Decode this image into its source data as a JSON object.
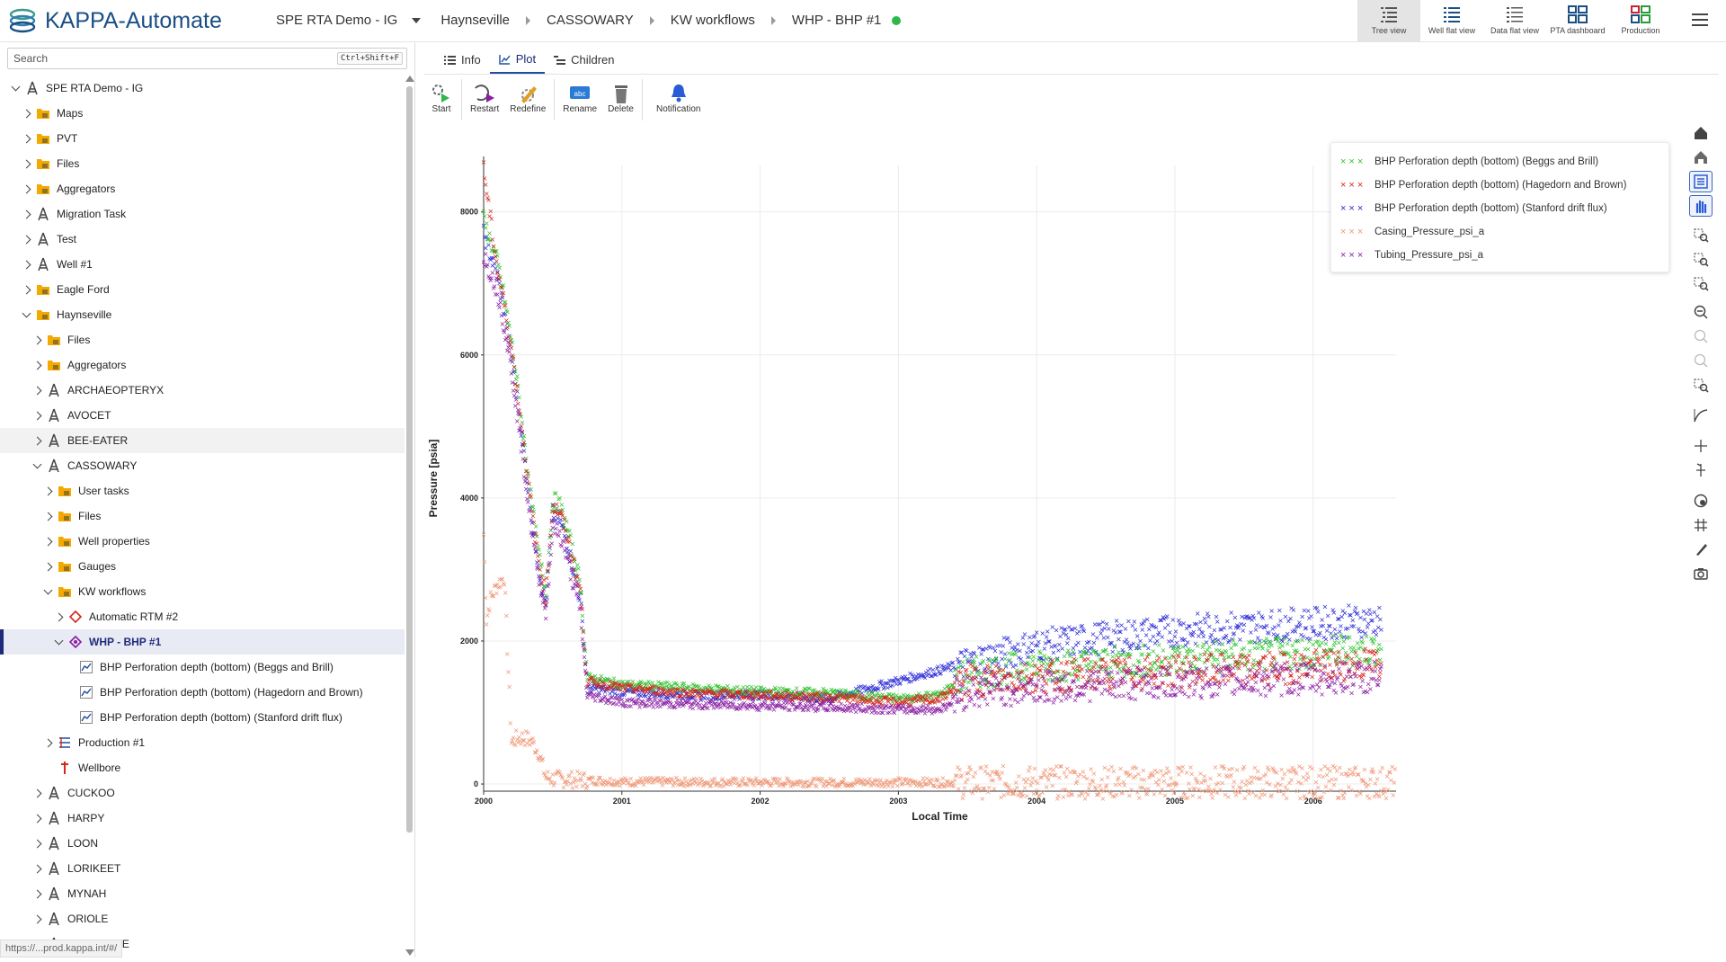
{
  "app": {
    "title": "KAPPA-Automate"
  },
  "breadcrumb": {
    "project": "SPE RTA Demo - IG",
    "items": [
      "Haynseville",
      "CASSOWARY",
      "KW workflows",
      "WHP - BHP #1"
    ]
  },
  "views": [
    {
      "label": "Tree view",
      "icon": "tree-view-icon"
    },
    {
      "label": "Well flat view",
      "icon": "well-flat-view-icon"
    },
    {
      "label": "Data flat view",
      "icon": "data-flat-view-icon"
    },
    {
      "label": "PTA dashboard",
      "icon": "pta-dashboard-icon"
    },
    {
      "label": "Production",
      "icon": "production-icon"
    }
  ],
  "search": {
    "placeholder": "Search",
    "shortcut": "Ctrl+Shift+F"
  },
  "tree": [
    {
      "label": "SPE RTA Demo - IG",
      "depth": 0,
      "chevron": "down",
      "icon": "well-icon"
    },
    {
      "label": "Maps",
      "depth": 1,
      "chevron": "right",
      "icon": "maps-folder-icon"
    },
    {
      "label": "PVT",
      "depth": 1,
      "chevron": "right",
      "icon": "pvt-folder-icon"
    },
    {
      "label": "Files",
      "depth": 1,
      "chevron": "right",
      "icon": "folder-icon"
    },
    {
      "label": "Aggregators",
      "depth": 1,
      "chevron": "right",
      "icon": "aggregators-folder-icon"
    },
    {
      "label": "Migration Task",
      "depth": 1,
      "chevron": "right",
      "icon": "well-icon"
    },
    {
      "label": "Test",
      "depth": 1,
      "chevron": "right",
      "icon": "well-icon"
    },
    {
      "label": "Well #1",
      "depth": 1,
      "chevron": "right",
      "icon": "well-icon"
    },
    {
      "label": "Eagle Ford",
      "depth": 1,
      "chevron": "right",
      "icon": "field-folder-icon"
    },
    {
      "label": "Haynseville",
      "depth": 1,
      "chevron": "down",
      "icon": "field-folder-icon"
    },
    {
      "label": "Files",
      "depth": 2,
      "chevron": "right",
      "icon": "folder-icon"
    },
    {
      "label": "Aggregators",
      "depth": 2,
      "chevron": "right",
      "icon": "aggregators-folder-icon"
    },
    {
      "label": "ARCHAEOPTERYX",
      "depth": 2,
      "chevron": "right",
      "icon": "well-icon"
    },
    {
      "label": "AVOCET",
      "depth": 2,
      "chevron": "right",
      "icon": "well-icon"
    },
    {
      "label": "BEE-EATER",
      "depth": 2,
      "chevron": "right",
      "icon": "well-icon",
      "hover": true
    },
    {
      "label": "CASSOWARY",
      "depth": 2,
      "chevron": "down",
      "icon": "well-icon"
    },
    {
      "label": "User tasks",
      "depth": 3,
      "chevron": "right",
      "icon": "user-tasks-folder-icon"
    },
    {
      "label": "Files",
      "depth": 3,
      "chevron": "right",
      "icon": "folder-icon"
    },
    {
      "label": "Well properties",
      "depth": 3,
      "chevron": "right",
      "icon": "well-properties-folder-icon"
    },
    {
      "label": "Gauges",
      "depth": 3,
      "chevron": "right",
      "icon": "gauges-folder-icon"
    },
    {
      "label": "KW workflows",
      "depth": 3,
      "chevron": "down",
      "icon": "workflows-folder-icon"
    },
    {
      "label": "Automatic RTM #2",
      "depth": 4,
      "chevron": "right",
      "icon": "rtm-icon"
    },
    {
      "label": "WHP - BHP #1",
      "depth": 4,
      "chevron": "down",
      "icon": "workflow-icon",
      "selected": true
    },
    {
      "label": "BHP Perforation depth (bottom) (Beggs and Brill)",
      "depth": 5,
      "chevron": "none",
      "icon": "data-series-icon"
    },
    {
      "label": "BHP Perforation depth (bottom) (Hagedorn and Brown)",
      "depth": 5,
      "chevron": "none",
      "icon": "data-series-icon"
    },
    {
      "label": "BHP Perforation depth (bottom) (Stanford drift flux)",
      "depth": 5,
      "chevron": "none",
      "icon": "data-series-icon"
    },
    {
      "label": "Production #1",
      "depth": 3,
      "chevron": "right",
      "icon": "production-icon"
    },
    {
      "label": "Wellbore",
      "depth": 3,
      "chevron": "none",
      "icon": "wellbore-icon"
    },
    {
      "label": "CUCKOO",
      "depth": 2,
      "chevron": "right",
      "icon": "well-icon"
    },
    {
      "label": "HARPY",
      "depth": 2,
      "chevron": "right",
      "icon": "well-icon"
    },
    {
      "label": "LOON",
      "depth": 2,
      "chevron": "right",
      "icon": "well-icon"
    },
    {
      "label": "LORIKEET",
      "depth": 2,
      "chevron": "right",
      "icon": "well-icon"
    },
    {
      "label": "MYNAH",
      "depth": 2,
      "chevron": "right",
      "icon": "well-icon"
    },
    {
      "label": "ORIOLE",
      "depth": 2,
      "chevron": "right",
      "icon": "well-icon"
    },
    {
      "label": "PARTRIDGE",
      "depth": 2,
      "chevron": "right",
      "icon": "well-icon"
    }
  ],
  "status_url": "https://...prod.kappa.int/#/",
  "tabs": [
    {
      "label": "Info",
      "icon": "list-icon"
    },
    {
      "label": "Plot",
      "icon": "line-chart-icon",
      "active": true
    },
    {
      "label": "Children",
      "icon": "children-icon"
    }
  ],
  "toolbar": [
    {
      "label": "Start",
      "icon": "start-icon"
    },
    {
      "label": "Restart",
      "icon": "restart-icon"
    },
    {
      "label": "Redefine",
      "icon": "redefine-icon"
    },
    {
      "label": "Rename",
      "icon": "rename-icon"
    },
    {
      "label": "Delete",
      "icon": "trash-icon"
    },
    {
      "label": "Notification",
      "icon": "bell-icon"
    }
  ],
  "right_tools": [
    "home-icon",
    "home-alt-icon",
    "legend-icon",
    "pan-hand-icon",
    "zoom-box-icon",
    "zoom-x-icon",
    "zoom-y-icon",
    "zoom-out-icon",
    "undo-icon",
    "redo-icon",
    "zoom-fit-icon",
    "curve-icon",
    "crosshair-icon",
    "cursor-icon",
    "color-icon",
    "grid-icon",
    "brush-icon",
    "camera-icon"
  ],
  "colors": {
    "beggs": "#2ec42e",
    "hagedorn": "#d4281e",
    "stanford": "#2a2ad6",
    "casing": "#ef9676",
    "tubing": "#8a1ea3",
    "accent": "#1f2b7a"
  },
  "chart_data": {
    "type": "scatter",
    "xlabel": "Local Time",
    "ylabel": "Pressure [psia]",
    "xlim": [
      2000.0,
      2006.6
    ],
    "ylim": [
      -100,
      8650
    ],
    "x_ticks": [
      "2000",
      "2001",
      "2002",
      "2003",
      "2004",
      "2005",
      "2006"
    ],
    "y_ticks": [
      0,
      2000,
      4000,
      6000,
      8000
    ],
    "grid": true,
    "legend_position": "top-right",
    "series": [
      {
        "name": "BHP Perforation depth (bottom) (Beggs and Brill)",
        "color": "#2ec42e",
        "marker": "x",
        "points": [
          [
            2000.0,
            7900
          ],
          [
            2000.1,
            7300
          ],
          [
            2000.15,
            6800
          ],
          [
            2000.2,
            6200
          ],
          [
            2000.25,
            5500
          ],
          [
            2000.3,
            4700
          ],
          [
            2000.35,
            3900
          ],
          [
            2000.4,
            3200
          ],
          [
            2000.45,
            2700
          ],
          [
            2000.5,
            4000
          ],
          [
            2000.55,
            3900
          ],
          [
            2000.6,
            3600
          ],
          [
            2000.65,
            3200
          ],
          [
            2000.7,
            2800
          ],
          [
            2000.75,
            1500
          ],
          [
            2001.0,
            1400
          ],
          [
            2001.5,
            1350
          ],
          [
            2002.0,
            1300
          ],
          [
            2002.5,
            1280
          ],
          [
            2003.0,
            1200
          ],
          [
            2003.3,
            1250
          ],
          [
            2003.5,
            1550
          ],
          [
            2004.0,
            1650
          ],
          [
            2004.5,
            1700
          ],
          [
            2005.0,
            1750
          ],
          [
            2005.5,
            1800
          ],
          [
            2006.0,
            1850
          ],
          [
            2006.5,
            1900
          ]
        ]
      },
      {
        "name": "BHP Perforation depth (bottom) (Hagedorn and Brown)",
        "color": "#d4281e",
        "marker": "x",
        "points": [
          [
            2000.0,
            8600
          ],
          [
            2000.1,
            7200
          ],
          [
            2000.15,
            6700
          ],
          [
            2000.2,
            6100
          ],
          [
            2000.25,
            5400
          ],
          [
            2000.3,
            4600
          ],
          [
            2000.35,
            3800
          ],
          [
            2000.4,
            3100
          ],
          [
            2000.45,
            2600
          ],
          [
            2000.5,
            3900
          ],
          [
            2000.55,
            3800
          ],
          [
            2000.6,
            3500
          ],
          [
            2000.65,
            3100
          ],
          [
            2000.7,
            2700
          ],
          [
            2000.75,
            1450
          ],
          [
            2001.0,
            1350
          ],
          [
            2001.5,
            1280
          ],
          [
            2002.0,
            1250
          ],
          [
            2002.5,
            1220
          ],
          [
            2003.0,
            1150
          ],
          [
            2003.3,
            1200
          ],
          [
            2003.5,
            1450
          ],
          [
            2004.0,
            1500
          ],
          [
            2004.5,
            1550
          ],
          [
            2005.0,
            1580
          ],
          [
            2005.5,
            1600
          ],
          [
            2006.0,
            1650
          ],
          [
            2006.5,
            1700
          ]
        ]
      },
      {
        "name": "BHP Perforation depth (bottom) (Stanford drift flux)",
        "color": "#2a2ad6",
        "marker": "x",
        "points": [
          [
            2000.0,
            7700
          ],
          [
            2000.1,
            7100
          ],
          [
            2000.15,
            6600
          ],
          [
            2000.2,
            6000
          ],
          [
            2000.25,
            5300
          ],
          [
            2000.3,
            4500
          ],
          [
            2000.35,
            3700
          ],
          [
            2000.4,
            3000
          ],
          [
            2000.45,
            2500
          ],
          [
            2000.5,
            3800
          ],
          [
            2000.55,
            3700
          ],
          [
            2000.6,
            3400
          ],
          [
            2000.65,
            3000
          ],
          [
            2000.7,
            2600
          ],
          [
            2000.75,
            1350
          ],
          [
            2001.0,
            1300
          ],
          [
            2001.5,
            1250
          ],
          [
            2002.0,
            1250
          ],
          [
            2002.5,
            1200
          ],
          [
            2003.0,
            1450
          ],
          [
            2003.3,
            1600
          ],
          [
            2003.5,
            1700
          ],
          [
            2004.0,
            1950
          ],
          [
            2004.5,
            2050
          ],
          [
            2005.0,
            2150
          ],
          [
            2005.5,
            2200
          ],
          [
            2006.0,
            2250
          ],
          [
            2006.5,
            2300
          ]
        ]
      },
      {
        "name": "Casing_Pressure_psi_a",
        "color": "#ef9676",
        "marker": "x",
        "points": [
          [
            2000.0,
            3500
          ],
          [
            2000.02,
            2300
          ],
          [
            2000.05,
            2600
          ],
          [
            2000.1,
            2800
          ],
          [
            2000.15,
            2900
          ],
          [
            2000.2,
            600
          ],
          [
            2000.25,
            650
          ],
          [
            2000.3,
            650
          ],
          [
            2000.35,
            600
          ],
          [
            2000.4,
            450
          ],
          [
            2000.45,
            100
          ],
          [
            2000.5,
            80
          ],
          [
            2001.0,
            40
          ],
          [
            2002.0,
            30
          ],
          [
            2003.0,
            30
          ],
          [
            2004.0,
            30
          ],
          [
            2005.0,
            30
          ],
          [
            2006.0,
            30
          ],
          [
            2006.6,
            30
          ]
        ]
      },
      {
        "name": "Tubing_Pressure_psi_a",
        "color": "#8a1ea3",
        "marker": "x",
        "points": [
          [
            2000.0,
            7400
          ],
          [
            2000.1,
            6900
          ],
          [
            2000.15,
            6400
          ],
          [
            2000.2,
            5800
          ],
          [
            2000.25,
            5100
          ],
          [
            2000.3,
            4300
          ],
          [
            2000.35,
            3500
          ],
          [
            2000.4,
            2900
          ],
          [
            2000.45,
            2400
          ],
          [
            2000.5,
            3600
          ],
          [
            2000.55,
            3500
          ],
          [
            2000.6,
            3200
          ],
          [
            2000.65,
            2800
          ],
          [
            2000.7,
            2400
          ],
          [
            2000.75,
            1250
          ],
          [
            2001.0,
            1150
          ],
          [
            2001.5,
            1120
          ],
          [
            2002.0,
            1100
          ],
          [
            2002.5,
            1080
          ],
          [
            2003.0,
            1050
          ],
          [
            2003.3,
            1050
          ],
          [
            2003.5,
            1300
          ],
          [
            2004.0,
            1350
          ],
          [
            2004.5,
            1400
          ],
          [
            2005.0,
            1420
          ],
          [
            2005.5,
            1450
          ],
          [
            2006.0,
            1480
          ],
          [
            2006.5,
            1500
          ]
        ]
      }
    ]
  }
}
